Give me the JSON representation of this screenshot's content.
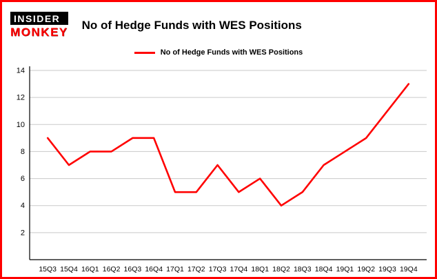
{
  "page": {
    "background": "#ffffff",
    "frame_border_color": "#ff0000"
  },
  "header": {
    "logo_top": "INSIDER",
    "logo_bottom": "MONKEY",
    "title": "No of Hedge Funds with WES Positions"
  },
  "legend": {
    "label": "No of Hedge Funds with WES Positions",
    "color": "#ff0000"
  },
  "chart_data": {
    "type": "line",
    "title": "No of Hedge Funds with WES Positions",
    "categories": [
      "15Q3",
      "15Q4",
      "16Q1",
      "16Q2",
      "16Q3",
      "16Q4",
      "17Q1",
      "17Q2",
      "17Q3",
      "17Q4",
      "18Q1",
      "18Q2",
      "18Q3",
      "18Q4",
      "19Q1",
      "19Q2",
      "19Q3",
      "19Q4"
    ],
    "values": [
      9,
      7,
      8,
      8,
      9,
      9,
      5,
      5,
      7,
      5,
      6,
      4,
      5,
      7,
      8,
      9,
      11,
      13
    ],
    "xlabel": "",
    "ylabel": "",
    "ylim": [
      0,
      14
    ],
    "yticks": [
      2,
      4,
      6,
      8,
      10,
      12,
      14
    ],
    "line_color": "#ff0000",
    "grid_color": "#c9c9c9",
    "axis_color": "#000000",
    "grid": true,
    "legend_position": "top"
  }
}
